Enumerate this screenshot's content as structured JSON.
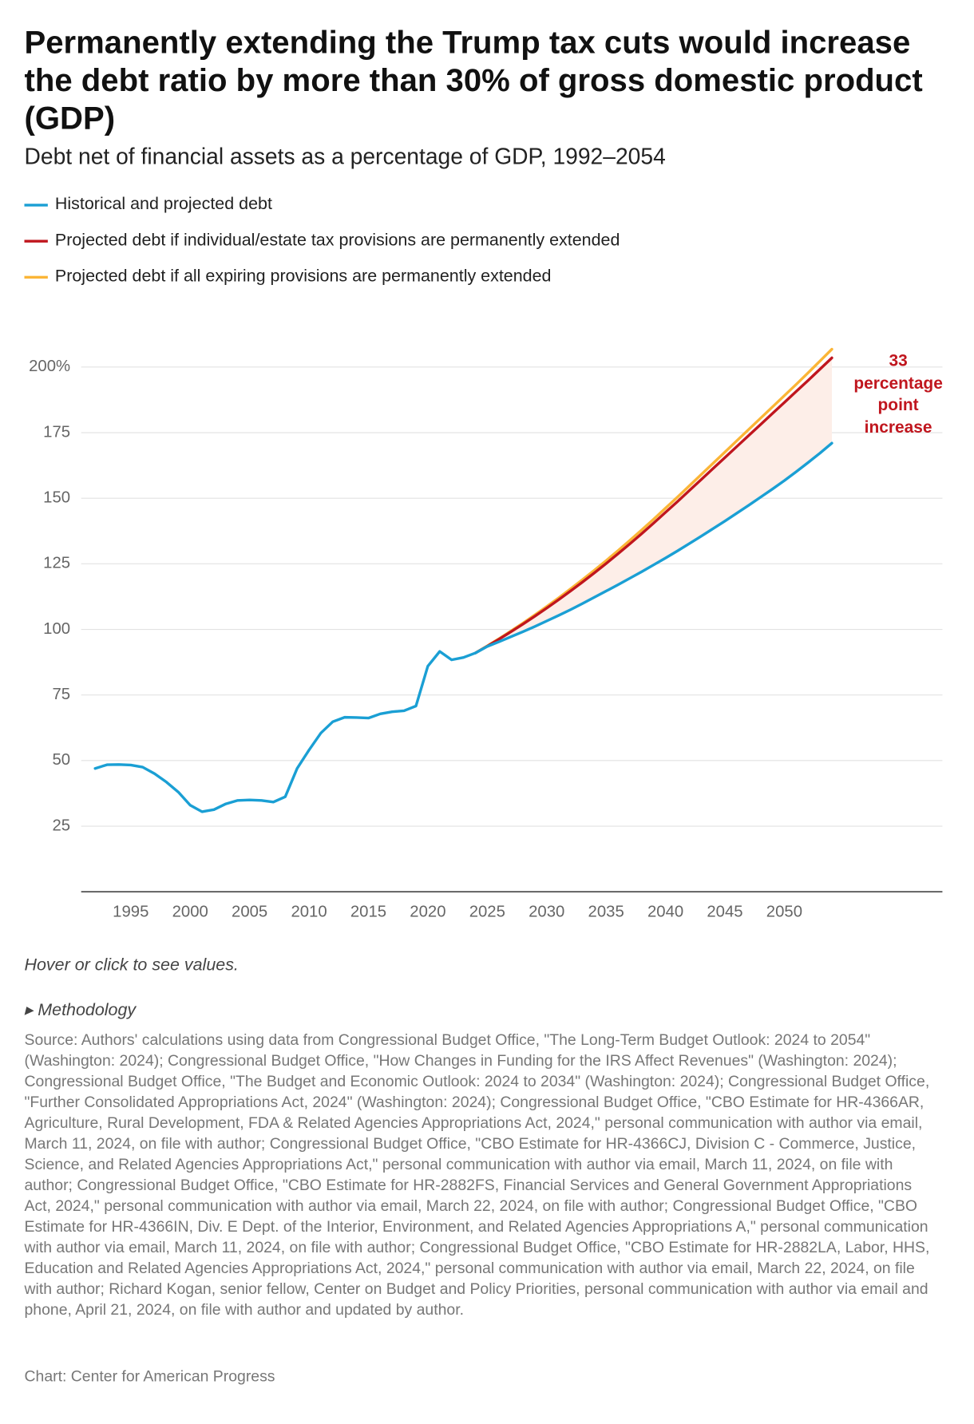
{
  "chart_data": {
    "type": "line",
    "title": "Permanently extending the Trump tax cuts would increase the debt ratio by more than 30% of gross domestic product (GDP)",
    "subtitle": "Debt net of financial assets as a percentage of GDP, 1992–2054",
    "x": [
      1992,
      1993,
      1994,
      1995,
      1996,
      1997,
      1998,
      1999,
      2000,
      2001,
      2002,
      2003,
      2004,
      2005,
      2006,
      2007,
      2008,
      2009,
      2010,
      2011,
      2012,
      2013,
      2014,
      2015,
      2016,
      2017,
      2018,
      2019,
      2020,
      2021,
      2022,
      2023,
      2024,
      2025,
      2026,
      2027,
      2028,
      2029,
      2030,
      2031,
      2032,
      2033,
      2034,
      2035,
      2036,
      2037,
      2038,
      2039,
      2040,
      2041,
      2042,
      2043,
      2044,
      2045,
      2046,
      2047,
      2048,
      2049,
      2050,
      2051,
      2052,
      2053,
      2054
    ],
    "series": [
      {
        "name": "Historical and projected debt",
        "color": "#1a9fd4",
        "values": [
          47,
          48.4,
          48.5,
          48.3,
          47.5,
          45,
          41.8,
          38,
          33,
          30.5,
          31.3,
          33.5,
          34.8,
          35,
          34.8,
          34.2,
          36.2,
          47,
          54,
          60.5,
          64.8,
          66.5,
          66.4,
          66.2,
          67.8,
          68.6,
          69,
          70.8,
          86,
          91.6,
          88.4,
          89.3,
          91,
          93.5,
          95.3,
          97.2,
          99.1,
          101.1,
          103.2,
          105.3,
          107.5,
          109.8,
          112.2,
          114.6,
          117,
          119.5,
          122,
          124.6,
          127.2,
          129.9,
          132.7,
          135.5,
          138.4,
          141.3,
          144.3,
          147.3,
          150.4,
          153.5,
          156.7,
          160.1,
          163.6,
          167.2,
          171
        ]
      },
      {
        "name": "Projected debt if individual/estate tax provisions are permanently extended",
        "color": "#c0161e",
        "values": [
          null,
          null,
          null,
          null,
          null,
          null,
          null,
          null,
          null,
          null,
          null,
          null,
          null,
          null,
          null,
          null,
          null,
          null,
          null,
          null,
          null,
          null,
          null,
          null,
          null,
          null,
          null,
          null,
          null,
          null,
          null,
          null,
          91,
          93.6,
          96.3,
          99.1,
          102,
          105,
          108.1,
          111.3,
          114.6,
          118,
          121.5,
          125.1,
          128.8,
          132.6,
          136.5,
          140.5,
          144.6,
          148.7,
          152.9,
          157.1,
          161.3,
          165.5,
          169.7,
          173.9,
          178.1,
          182.3,
          186.5,
          190.7,
          194.9,
          199.2,
          203.5
        ]
      },
      {
        "name": "Projected debt if all expiring provisions are permanently extended",
        "color": "#fbb536",
        "values": [
          null,
          null,
          null,
          null,
          null,
          null,
          null,
          null,
          null,
          null,
          null,
          null,
          null,
          null,
          null,
          null,
          null,
          null,
          null,
          null,
          null,
          null,
          null,
          null,
          null,
          null,
          null,
          null,
          null,
          null,
          null,
          null,
          91,
          93.7,
          96.5,
          99.4,
          102.4,
          105.5,
          108.7,
          112,
          115.4,
          118.9,
          122.5,
          126.2,
          130,
          133.9,
          137.9,
          142,
          146.2,
          150.4,
          154.7,
          159,
          163.3,
          167.6,
          171.9,
          176.2,
          180.5,
          184.8,
          189.1,
          193.4,
          197.8,
          202.3,
          206.8
        ]
      }
    ],
    "xlim": [
      1991,
      2063
    ],
    "xticks": [
      1995,
      2000,
      2005,
      2010,
      2015,
      2020,
      2025,
      2030,
      2035,
      2040,
      2045,
      2050
    ],
    "ylim": [
      0,
      210
    ],
    "yticks": [
      {
        "value": 200,
        "label": "200%"
      },
      175,
      150,
      125,
      100,
      75,
      50,
      25
    ],
    "grid": true,
    "annotation": "33 percentage point increase",
    "note": "Hover or click to see values.",
    "methodology": "Methodology",
    "source": "Source: Authors' calculations using data from Congressional Budget Office, \"The Long-Term Budget Outlook: 2024 to 2054\" (Washington: 2024); Congressional Budget Office, \"How Changes in Funding for the IRS Affect Revenues\" (Washington: 2024); Congressional Budget Office, \"The Budget and Economic Outlook: 2024 to 2034\" (Washington: 2024); Congressional Budget Office, \"Further Consolidated Appropriations Act, 2024\" (Washington: 2024); Congressional Budget Office, \"CBO Estimate for HR-4366AR, Agriculture, Rural Development, FDA & Related Agencies Appropriations Act, 2024,\" personal communication with author via email, March 11, 2024, on file with author; Congressional Budget Office, \"CBO Estimate for HR-4366CJ, Division C - Commerce, Justice, Science, and Related Agencies Appropriations Act,\" personal communication with author via email, March 11, 2024, on file with author; Congressional Budget Office, \"CBO Estimate for HR-2882FS, Financial Services and General Government Appropriations Act, 2024,\" personal communication with author via email, March 22, 2024, on file with author; Congressional Budget Office, \"CBO Estimate for HR-4366IN, Div. E Dept. of the Interior, Environment, and Related Agencies Appropriations A,\" personal communication with author via email, March 11, 2024, on file with author; Congressional Budget Office, \"CBO Estimate for HR-2882LA, Labor, HHS, Education and Related Agencies Appropriations Act, 2024,\" personal communication with author via email, March 22, 2024, on file with author; Richard Kogan, senior fellow, Center on Budget and Policy Priorities, personal communication with author via email and phone, April 21, 2024, on file with author and updated by author.",
    "credit": "Chart: Center for American Progress"
  }
}
